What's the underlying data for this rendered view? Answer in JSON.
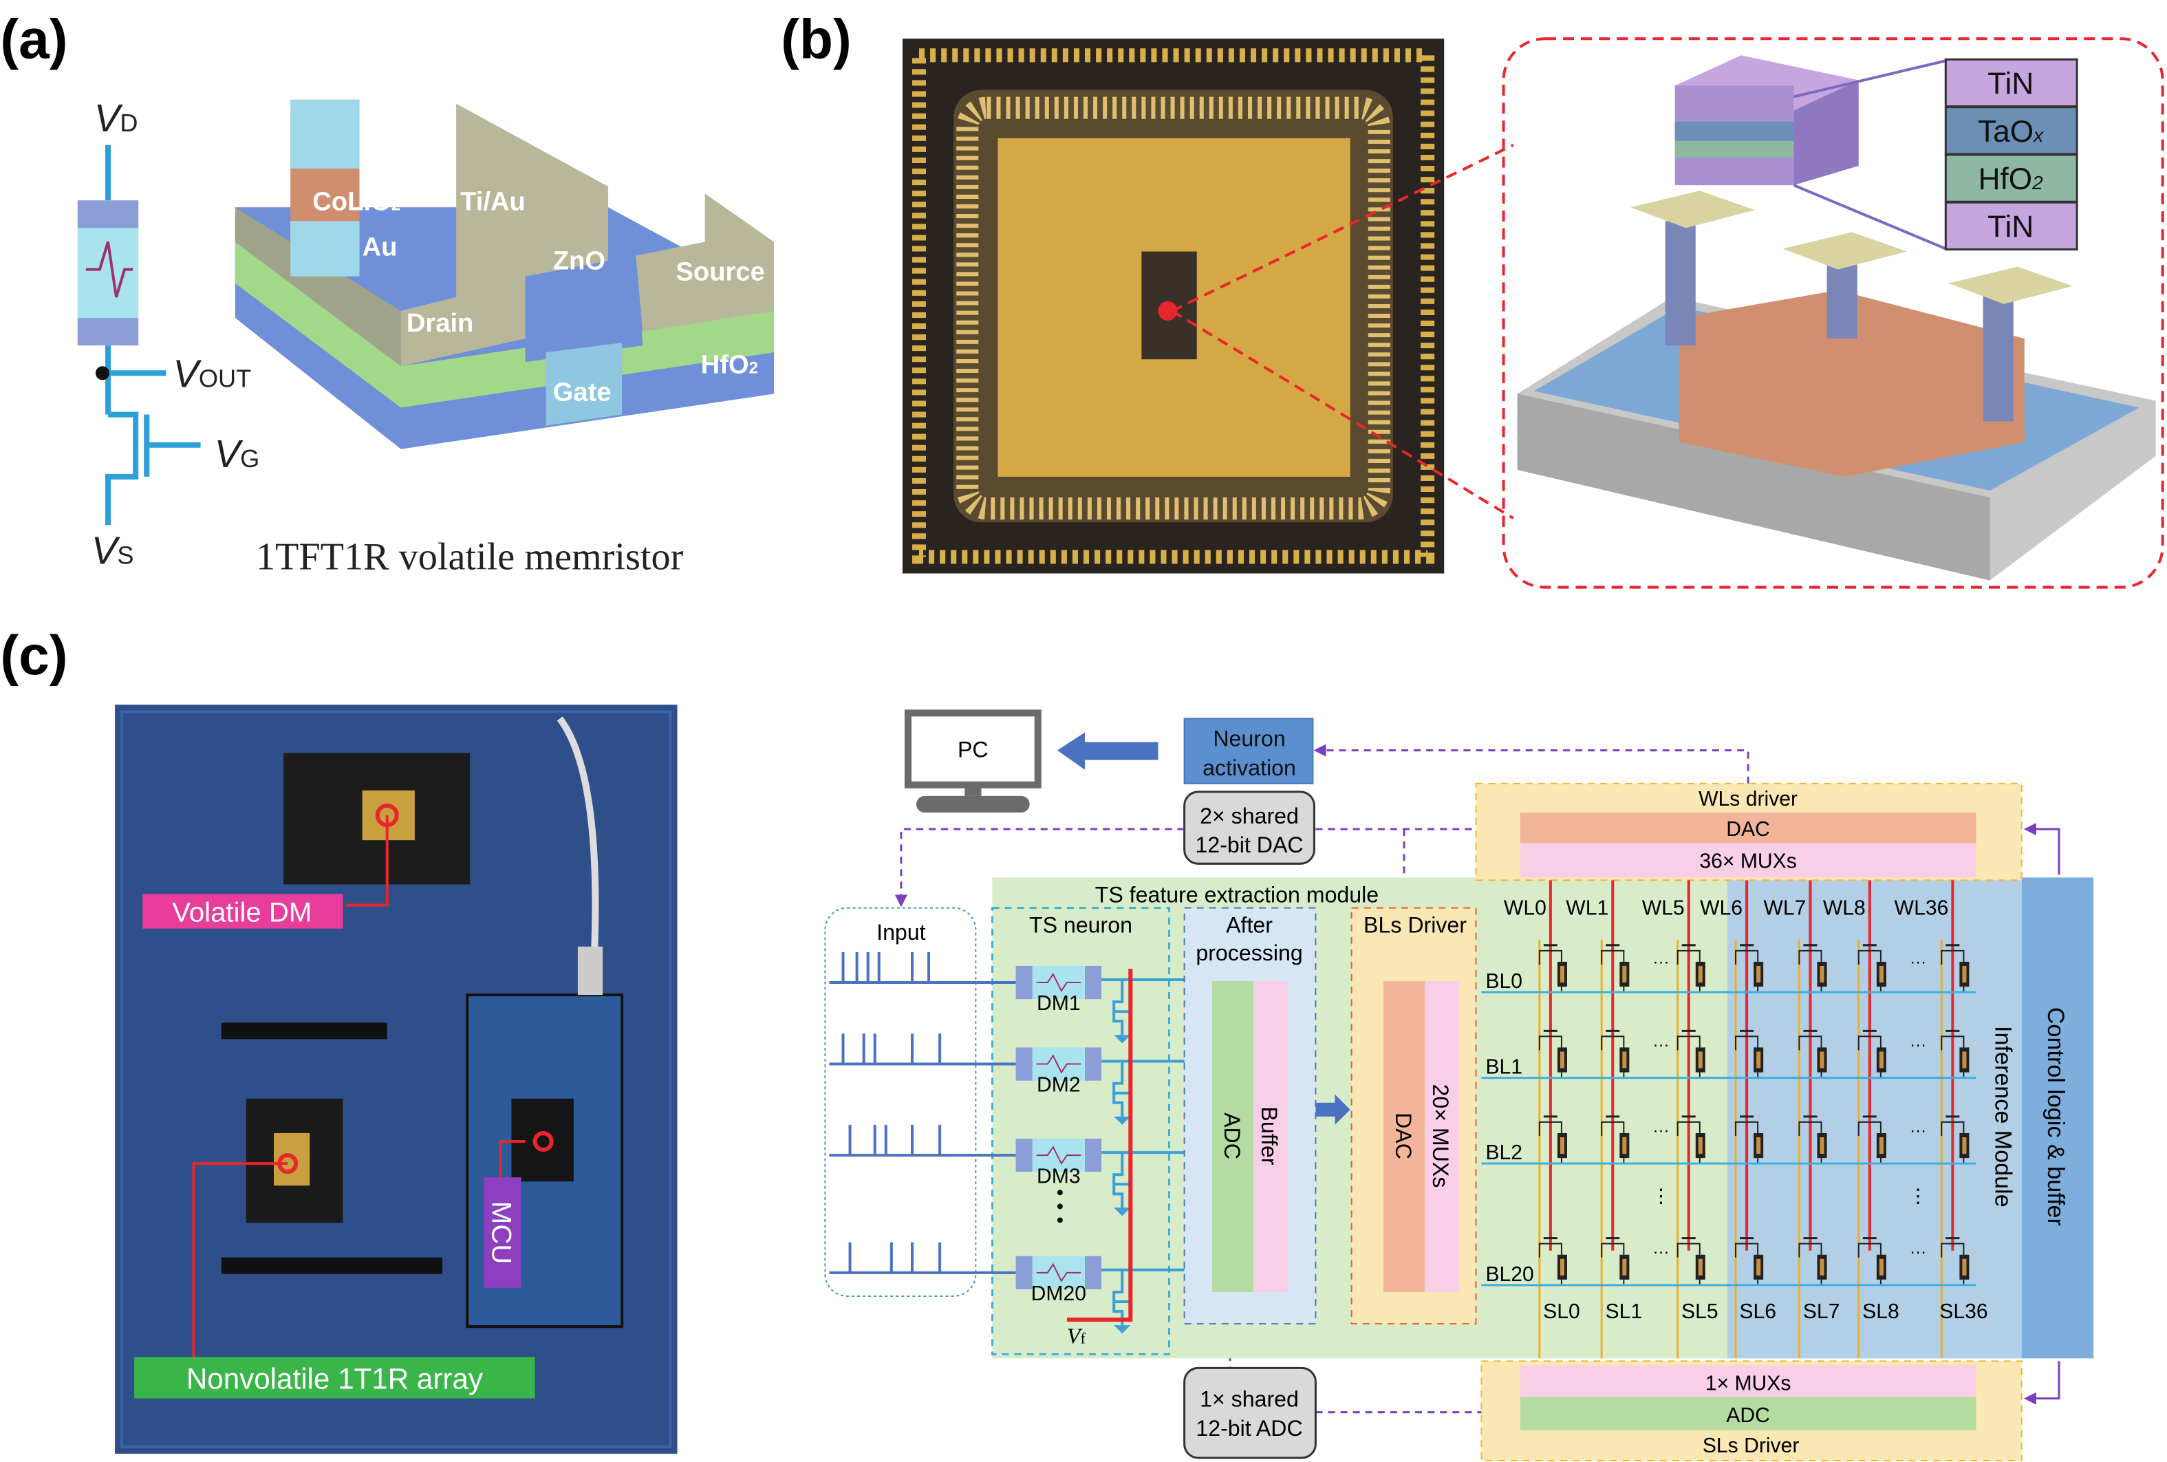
{
  "panel_a": {
    "label": "(a)",
    "vd": "V",
    "vd_sub": "D",
    "vout": "V",
    "vout_sub": "OUT",
    "vg": "V",
    "vg_sub": "G",
    "vs": "V",
    "vs_sub": "S",
    "layers": {
      "au_top": "Au",
      "colio2": "CoLiO",
      "colio2_sub": "2",
      "au_bottom": "Au",
      "tiau_left": "Ti/Au",
      "tiau_right": "Ti/Au",
      "zno": "ZnO",
      "drain": "Drain",
      "source": "Source",
      "gate": "Gate",
      "hfo2": "HfO",
      "hfo2_sub": "2"
    },
    "caption": "1TFT1R volatile memristor"
  },
  "panel_b": {
    "label": "(b)",
    "stack": [
      {
        "text": "TiN",
        "sub": "",
        "color": "#c7a6e0"
      },
      {
        "text": "TaO",
        "sub": "x",
        "color": "#6b8fb5"
      },
      {
        "text": "HfO",
        "sub": "2",
        "color": "#8fb8a4"
      },
      {
        "text": "TiN",
        "sub": "",
        "color": "#c7a6e0"
      }
    ]
  },
  "panel_c": {
    "label": "(c)",
    "board": {
      "volatile_dm": "Volatile DM",
      "nonvolatile_array": "Nonvolatile 1T1R array",
      "mcu": "MCU"
    },
    "pc": "PC",
    "neuron_activation": [
      "Neuron",
      "activation"
    ],
    "shared_dac": [
      "2× shared",
      "12-bit DAC"
    ],
    "shared_adc": [
      "1× shared",
      "12-bit ADC"
    ],
    "input": "Input",
    "ts_module": "TS feature extraction module",
    "ts_neuron": "TS neuron",
    "dms": [
      "DM1",
      "DM2",
      "DM3",
      "DM20"
    ],
    "vf": "V",
    "vf_sub": "f",
    "after_processing": [
      "After",
      "processing"
    ],
    "adc": "ADC",
    "buffer": "Buffer",
    "bls_driver": "BLs Driver",
    "bls_dac": "DAC",
    "bls_mux": "20× MUXs",
    "wls_driver": "WLs driver",
    "wls_dac": "DAC",
    "wls_mux": "36× MUXs",
    "wl_labels": [
      "WL0",
      "WL1",
      "WL5",
      "WL6",
      "WL7",
      "WL8",
      "WL36"
    ],
    "bl_labels": [
      "BL0",
      "BL1",
      "BL2",
      "BL20"
    ],
    "sl_labels": [
      "SL0",
      "SL1",
      "SL5",
      "SL6",
      "SL7",
      "SL8",
      "SL36"
    ],
    "inference_module": "Inference Module",
    "control_logic": "Control logic & buffer",
    "sls_mux": "1× MUXs",
    "sls_adc": "ADC",
    "sls_driver": "SLs Driver"
  },
  "colors": {
    "accent_blue": "#4a72c0",
    "red": "#e8262d",
    "purple_dash": "#7a3fc0",
    "green_module": "#d9ecc9",
    "blue_module": "#b3cfe6",
    "yellow_driver": "#fbe7b3"
  }
}
